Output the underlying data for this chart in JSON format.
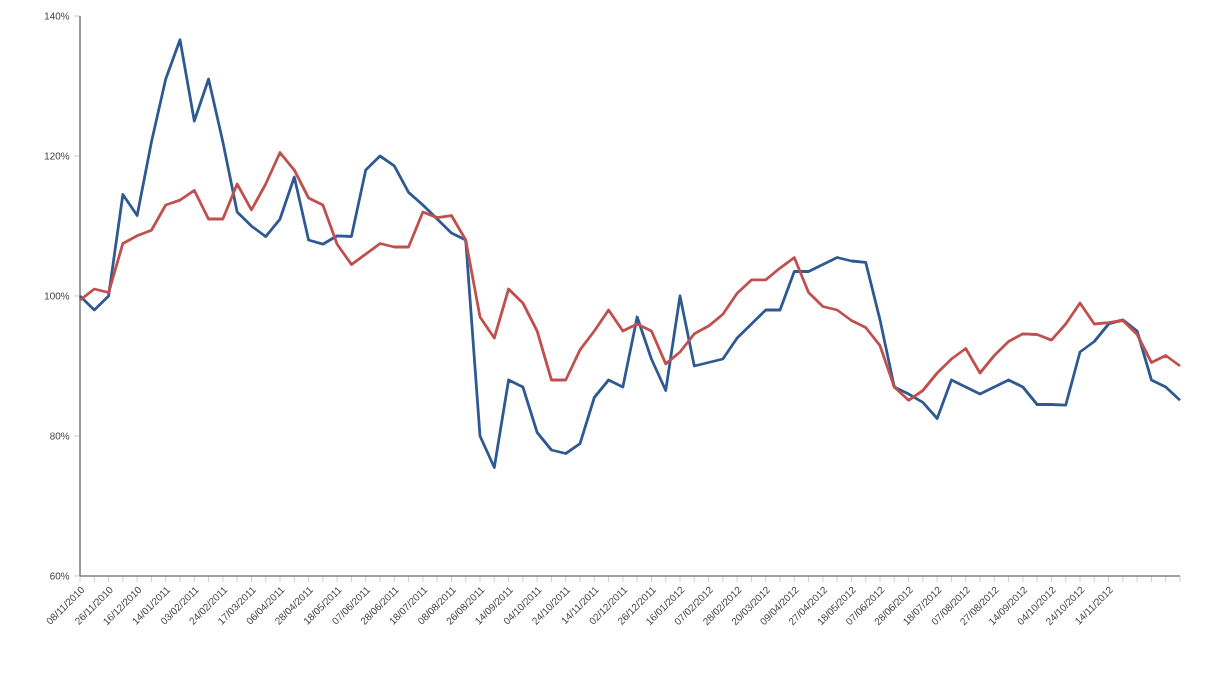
{
  "chart_data": {
    "type": "line",
    "categories": [
      "08/11/2010",
      null,
      "26/11/2010",
      null,
      "16/12/2010",
      null,
      "14/01/2011",
      null,
      "03/02/2011",
      null,
      "24/02/2011",
      null,
      "17/03/2011",
      null,
      "06/04/2011",
      null,
      "28/04/2011",
      null,
      "18/05/2011",
      null,
      "07/06/2011",
      null,
      "28/06/2011",
      null,
      "18/07/2011",
      null,
      "08/08/2011",
      null,
      "26/08/2011",
      null,
      "14/09/2011",
      null,
      "04/10/2011",
      null,
      "24/10/2011",
      null,
      "14/11/2011",
      null,
      "02/12/2011",
      null,
      "26/12/2011",
      null,
      "16/01/2012",
      null,
      "07/02/2012",
      null,
      "28/02/2012",
      null,
      "20/03/2012",
      null,
      "09/04/2012",
      null,
      "27/04/2012",
      null,
      "18/05/2012",
      null,
      "07/06/2012",
      null,
      "28/06/2012",
      null,
      "18/07/2012",
      null,
      "07/08/2012",
      null,
      "27/08/2012",
      null,
      "14/09/2012",
      null,
      "04/10/2012",
      null,
      "24/10/2012",
      null,
      "14/11/2012",
      null,
      null,
      null,
      null,
      null
    ],
    "series": [
      {
        "color": "#2e5a91",
        "values": [
          100,
          98,
          100,
          114.5,
          111.5,
          122,
          131,
          136.6,
          125,
          131,
          122,
          112,
          110,
          108.5,
          111,
          117,
          108,
          107.4,
          108.6,
          108.5,
          118,
          120,
          118.6,
          114.8,
          113,
          111,
          109,
          108,
          80,
          75.5,
          88,
          87,
          80.5,
          78,
          77.5,
          78.9,
          85.5,
          88,
          87,
          97,
          91,
          86.5,
          100,
          90,
          90.5,
          91,
          94,
          96,
          98,
          98,
          103.5,
          103.5,
          104.5,
          105.5,
          105,
          104.8,
          96.6,
          87,
          86,
          84.8,
          82.5,
          88,
          87,
          86,
          87,
          88,
          87,
          84.5,
          84.5,
          84.4,
          92,
          93.5,
          96,
          96.6,
          95,
          88,
          87,
          85.1
        ]
      },
      {
        "color": "#c0504d",
        "values": [
          99.4,
          101,
          100.5,
          107.5,
          108.6,
          109.4,
          113,
          113.7,
          115.1,
          111,
          111,
          116,
          112.3,
          116,
          120.5,
          118,
          114,
          113,
          107.4,
          104.5,
          106,
          107.5,
          107,
          107,
          112,
          111.2,
          111.5,
          108,
          97,
          94,
          101,
          99,
          95,
          88,
          88,
          92.3,
          95,
          98,
          95,
          96,
          95,
          90.3,
          92,
          94.6,
          95.7,
          97.4,
          100.4,
          102.3,
          102.3,
          104,
          105.5,
          100.5,
          98.5,
          98,
          96.5,
          95.5,
          92.9,
          87,
          85.1,
          86.5,
          89,
          91,
          92.5,
          89,
          91.5,
          93.5,
          94.6,
          94.5,
          93.7,
          96,
          99,
          96,
          96.2,
          96.5,
          94.5,
          90.5,
          91.5,
          90
        ]
      }
    ],
    "ylim": [
      60,
      140
    ],
    "yticks": [
      {
        "value": 60,
        "label": "60%"
      },
      {
        "value": 80,
        "label": "80%"
      },
      {
        "value": 100,
        "label": "100%"
      },
      {
        "value": 120,
        "label": "120%"
      },
      {
        "value": 140,
        "label": "140%"
      }
    ],
    "grid": false,
    "legend": false,
    "marker": "none",
    "line_style": "solid"
  }
}
